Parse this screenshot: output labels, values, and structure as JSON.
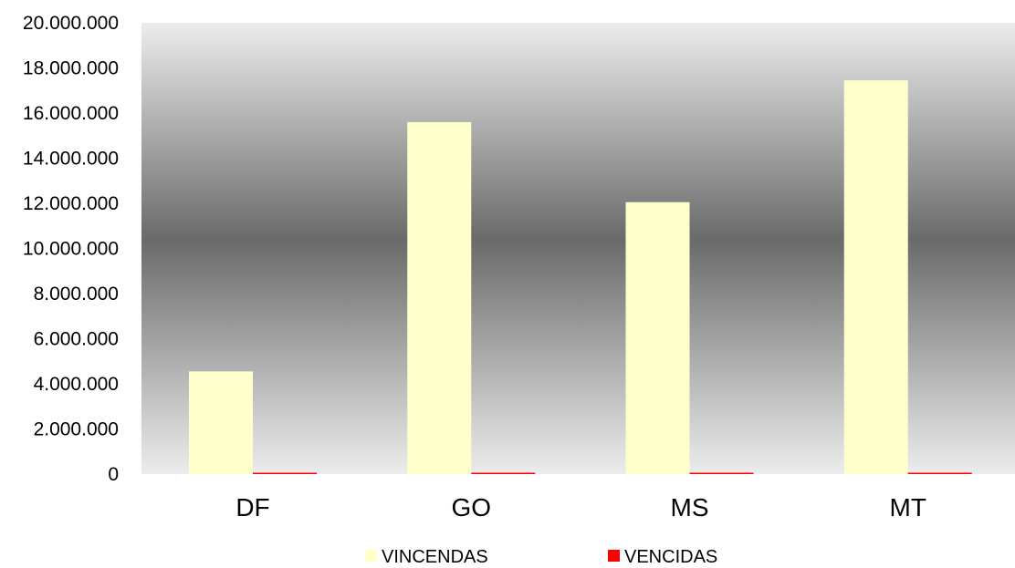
{
  "chart_data": {
    "type": "bar",
    "categories": [
      "DF",
      "GO",
      "MS",
      "MT"
    ],
    "series": [
      {
        "name": "VINCENDAS",
        "color": "#ffffcc",
        "values": [
          4550000,
          15600000,
          12050000,
          17450000
        ]
      },
      {
        "name": "VENCIDAS",
        "color": "#ff0000",
        "values": [
          60000,
          60000,
          60000,
          60000
        ]
      }
    ],
    "yticks": [
      "0",
      "2.000.000",
      "4.000.000",
      "6.000.000",
      "8.000.000",
      "10.000.000",
      "12.000.000",
      "14.000.000",
      "16.000.000",
      "18.000.000",
      "20.000.000"
    ],
    "ylim": [
      0,
      20000000
    ],
    "grid": false,
    "legend_position": "bottom",
    "plot_background": "gradient light gray to dark gray"
  }
}
